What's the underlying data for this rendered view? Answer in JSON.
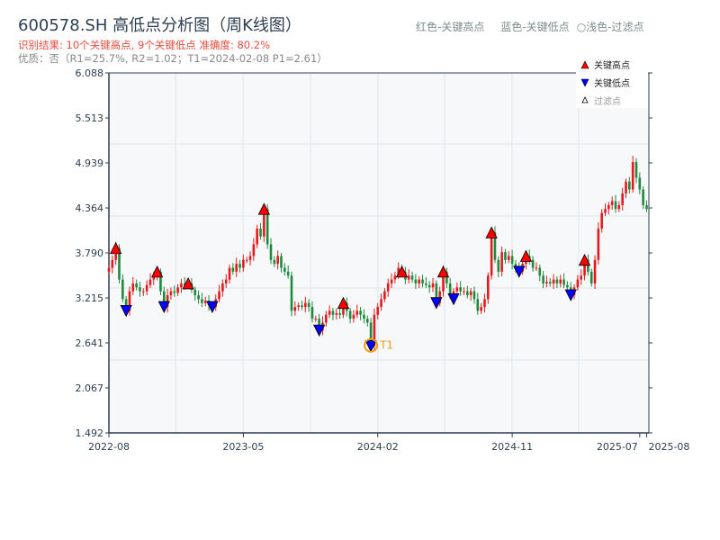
{
  "title": "600578.SH 高低点分析图（周K线图）",
  "result_text": "识别结果: 10个关键高点, 9个关键低点  准确度: 80.2%",
  "quality_text": "优质：否（R1=25.7%, R2=1.02；T1=2024-02-08 P1=2.61）",
  "legend_top": {
    "red": "红色-关键高点",
    "blue": "蓝色-关键低点",
    "light": "○浅色-过滤点"
  },
  "colors": {
    "up": "#e41a1c",
    "down": "#1e8a3c",
    "high_marker": "#ff0000",
    "low_marker": "#0000ff",
    "t1": "#f39c12"
  },
  "chart_data": {
    "type": "candlestick",
    "title": "600578.SH 高低点分析图（周K线图）",
    "ylim": [
      1.492,
      6.088
    ],
    "yticks": [
      "6.088",
      "5.513",
      "4.939",
      "4.364",
      "3.790",
      "3.215",
      "2.641",
      "2.067",
      "1.492"
    ],
    "xticks": [
      {
        "week": 0,
        "label": "2022-08"
      },
      {
        "week": 39,
        "label": "2023-05"
      },
      {
        "week": 78,
        "label": "2024-02"
      },
      {
        "week": 117,
        "label": "2024-11"
      },
      {
        "week": 154,
        "label": "2025-07"
      },
      {
        "week": 156,
        "label": "2025-08"
      }
    ],
    "legend": {
      "high": "关键高点",
      "low": "关键低点",
      "filtered": "过滤点"
    },
    "closes": [
      3.6,
      3.7,
      3.85,
      3.45,
      3.2,
      3.05,
      3.3,
      3.4,
      3.35,
      3.3,
      3.3,
      3.38,
      3.45,
      3.5,
      3.55,
      3.3,
      3.1,
      3.25,
      3.3,
      3.28,
      3.35,
      3.4,
      3.38,
      3.4,
      3.32,
      3.25,
      3.2,
      3.15,
      3.18,
      3.12,
      3.1,
      3.2,
      3.3,
      3.4,
      3.45,
      3.6,
      3.55,
      3.65,
      3.6,
      3.7,
      3.7,
      3.75,
      3.9,
      4.1,
      4.0,
      4.35,
      3.9,
      3.7,
      3.65,
      3.75,
      3.6,
      3.55,
      3.5,
      3.05,
      3.1,
      3.12,
      3.1,
      3.15,
      3.1,
      2.95,
      2.95,
      2.8,
      2.9,
      3.0,
      3.05,
      3.0,
      3.02,
      3.0,
      3.15,
      3.05,
      2.95,
      3.0,
      3.05,
      3.0,
      2.95,
      2.9,
      2.6,
      3.0,
      3.1,
      3.2,
      3.3,
      3.4,
      3.45,
      3.5,
      3.6,
      3.55,
      3.45,
      3.5,
      3.45,
      3.4,
      3.45,
      3.4,
      3.38,
      3.35,
      3.4,
      3.15,
      3.3,
      3.55,
      3.4,
      3.25,
      3.3,
      3.35,
      3.3,
      3.3,
      3.25,
      3.3,
      3.2,
      3.05,
      3.1,
      3.2,
      3.5,
      4.05,
      3.7,
      3.55,
      3.8,
      3.7,
      3.75,
      3.65,
      3.6,
      3.55,
      3.65,
      3.75,
      3.7,
      3.6,
      3.6,
      3.5,
      3.4,
      3.42,
      3.4,
      3.45,
      3.4,
      3.45,
      3.38,
      3.35,
      3.25,
      3.35,
      3.45,
      3.5,
      3.7,
      3.55,
      3.4,
      3.7,
      4.1,
      4.3,
      4.35,
      4.4,
      4.45,
      4.35,
      4.4,
      4.55,
      4.7,
      4.6,
      4.95,
      4.75,
      4.6,
      4.4,
      4.35
    ],
    "key_highs": [
      [
        2,
        3.85
      ],
      [
        14,
        3.55
      ],
      [
        23,
        3.4
      ],
      [
        45,
        4.35
      ],
      [
        68,
        3.15
      ],
      [
        85,
        3.55
      ],
      [
        97,
        3.55
      ],
      [
        111,
        4.05
      ],
      [
        121,
        3.75
      ],
      [
        138,
        3.7
      ]
    ],
    "key_lows": [
      [
        5,
        3.05
      ],
      [
        16,
        3.1
      ],
      [
        30,
        3.1
      ],
      [
        61,
        2.8
      ],
      [
        76,
        2.6
      ],
      [
        95,
        3.15
      ],
      [
        100,
        3.2
      ],
      [
        119,
        3.55
      ],
      [
        134,
        3.25
      ]
    ],
    "annotation": {
      "label": "T1",
      "week": 76,
      "value": 2.61
    }
  }
}
